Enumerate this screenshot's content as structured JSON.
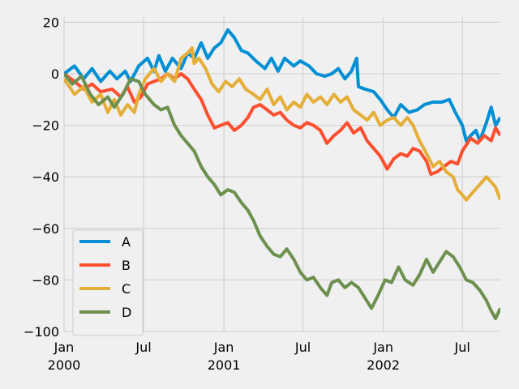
{
  "chart_data": {
    "type": "line",
    "x_axis": {
      "type": "date",
      "range": [
        "2000-01-01",
        "2002-09-26"
      ],
      "ticks": [
        {
          "date": "2000-01-01",
          "label": "Jan",
          "sublabel": "2000"
        },
        {
          "date": "2000-07-01",
          "label": "Jul",
          "sublabel": ""
        },
        {
          "date": "2001-01-01",
          "label": "Jan",
          "sublabel": "2001"
        },
        {
          "date": "2001-07-01",
          "label": "Jul",
          "sublabel": ""
        },
        {
          "date": "2002-01-01",
          "label": "Jan",
          "sublabel": "2002"
        },
        {
          "date": "2002-07-01",
          "label": "Jul",
          "sublabel": ""
        }
      ],
      "label": ""
    },
    "y_axis": {
      "range": [
        -100,
        22
      ],
      "ticks": [
        20,
        0,
        -20,
        -40,
        -60,
        -80,
        -100
      ],
      "tick_labels": [
        "20",
        "0",
        "−20",
        "−40",
        "−60",
        "−80",
        "−100"
      ],
      "label": ""
    },
    "grid": true,
    "legend_position": "lower-left",
    "title": "",
    "series": [
      {
        "name": "A",
        "color": "#008fd5",
        "points": [
          [
            "2000-01-01",
            0
          ],
          [
            "2000-01-25",
            3
          ],
          [
            "2000-02-15",
            -2
          ],
          [
            "2000-03-05",
            2
          ],
          [
            "2000-03-25",
            -3
          ],
          [
            "2000-04-15",
            1
          ],
          [
            "2000-05-01",
            -2
          ],
          [
            "2000-05-20",
            1
          ],
          [
            "2000-06-01",
            -3
          ],
          [
            "2000-06-20",
            3
          ],
          [
            "2000-07-10",
            6
          ],
          [
            "2000-07-25",
            1
          ],
          [
            "2000-08-05",
            7
          ],
          [
            "2000-08-20",
            1
          ],
          [
            "2000-09-05",
            6
          ],
          [
            "2000-09-25",
            2
          ],
          [
            "2000-10-10",
            8
          ],
          [
            "2000-10-25",
            6
          ],
          [
            "2000-11-10",
            12
          ],
          [
            "2000-11-25",
            6
          ],
          [
            "2000-12-10",
            10
          ],
          [
            "2000-12-25",
            12
          ],
          [
            "2001-01-10",
            17
          ],
          [
            "2001-01-25",
            14
          ],
          [
            "2001-02-10",
            9
          ],
          [
            "2001-02-25",
            8
          ],
          [
            "2001-03-15",
            5
          ],
          [
            "2001-04-05",
            2
          ],
          [
            "2001-04-20",
            6
          ],
          [
            "2001-05-05",
            1
          ],
          [
            "2001-05-20",
            6
          ],
          [
            "2001-06-10",
            3
          ],
          [
            "2001-06-25",
            5
          ],
          [
            "2001-07-15",
            3
          ],
          [
            "2001-08-01",
            0
          ],
          [
            "2001-08-20",
            -1
          ],
          [
            "2001-09-05",
            0
          ],
          [
            "2001-09-20",
            2
          ],
          [
            "2001-10-05",
            -2
          ],
          [
            "2001-10-20",
            1
          ],
          [
            "2001-11-01",
            6
          ],
          [
            "2001-11-05",
            -5
          ],
          [
            "2001-11-20",
            -6
          ],
          [
            "2001-12-10",
            -7
          ],
          [
            "2001-12-25",
            -10
          ],
          [
            "2002-01-10",
            -14
          ],
          [
            "2002-01-25",
            -17
          ],
          [
            "2002-02-10",
            -12
          ],
          [
            "2002-03-01",
            -15
          ],
          [
            "2002-03-20",
            -14
          ],
          [
            "2002-04-05",
            -12
          ],
          [
            "2002-04-25",
            -11
          ],
          [
            "2002-05-15",
            -11
          ],
          [
            "2002-06-01",
            -10
          ],
          [
            "2002-06-15",
            -15
          ],
          [
            "2002-07-01",
            -20
          ],
          [
            "2002-07-10",
            -26
          ],
          [
            "2002-07-20",
            -24
          ],
          [
            "2002-08-01",
            -22
          ],
          [
            "2002-08-10",
            -26
          ],
          [
            "2002-08-25",
            -19
          ],
          [
            "2002-09-05",
            -13
          ],
          [
            "2002-09-15",
            -20
          ],
          [
            "2002-09-26",
            -17
          ]
        ]
      },
      {
        "name": "B",
        "color": "#fc4f30",
        "points": [
          [
            "2000-01-01",
            0
          ],
          [
            "2000-01-25",
            -3
          ],
          [
            "2000-02-15",
            -6
          ],
          [
            "2000-03-05",
            -4
          ],
          [
            "2000-03-25",
            -7
          ],
          [
            "2000-04-20",
            -6
          ],
          [
            "2000-05-10",
            -9
          ],
          [
            "2000-05-25",
            -5
          ],
          [
            "2000-06-10",
            -11
          ],
          [
            "2000-06-25",
            -9
          ],
          [
            "2000-07-10",
            -4
          ],
          [
            "2000-07-25",
            -3
          ],
          [
            "2000-08-10",
            -2
          ],
          [
            "2000-08-25",
            0
          ],
          [
            "2000-09-10",
            -2
          ],
          [
            "2000-09-25",
            0
          ],
          [
            "2000-10-10",
            -2
          ],
          [
            "2000-10-25",
            -6
          ],
          [
            "2000-11-10",
            -10
          ],
          [
            "2000-11-25",
            -16
          ],
          [
            "2000-12-10",
            -21
          ],
          [
            "2000-12-25",
            -20
          ],
          [
            "2001-01-10",
            -19
          ],
          [
            "2001-01-25",
            -22
          ],
          [
            "2001-02-10",
            -20
          ],
          [
            "2001-02-25",
            -17
          ],
          [
            "2001-03-10",
            -13
          ],
          [
            "2001-03-25",
            -12
          ],
          [
            "2001-04-10",
            -14
          ],
          [
            "2001-04-25",
            -16
          ],
          [
            "2001-05-10",
            -15
          ],
          [
            "2001-05-25",
            -18
          ],
          [
            "2001-06-10",
            -20
          ],
          [
            "2001-06-25",
            -21
          ],
          [
            "2001-07-10",
            -19
          ],
          [
            "2001-07-25",
            -20
          ],
          [
            "2001-08-10",
            -22
          ],
          [
            "2001-08-25",
            -27
          ],
          [
            "2001-09-10",
            -24
          ],
          [
            "2001-09-25",
            -22
          ],
          [
            "2001-10-10",
            -19
          ],
          [
            "2001-10-25",
            -23
          ],
          [
            "2001-11-10",
            -21
          ],
          [
            "2001-11-25",
            -26
          ],
          [
            "2001-12-10",
            -29
          ],
          [
            "2001-12-25",
            -32
          ],
          [
            "2002-01-10",
            -37
          ],
          [
            "2002-01-25",
            -33
          ],
          [
            "2002-02-10",
            -31
          ],
          [
            "2002-02-25",
            -32
          ],
          [
            "2002-03-10",
            -29
          ],
          [
            "2002-03-25",
            -30
          ],
          [
            "2002-04-10",
            -34
          ],
          [
            "2002-04-20",
            -39
          ],
          [
            "2002-05-05",
            -38
          ],
          [
            "2002-05-20",
            -36
          ],
          [
            "2002-06-05",
            -34
          ],
          [
            "2002-06-20",
            -35
          ],
          [
            "2002-07-01",
            -30
          ],
          [
            "2002-07-20",
            -25
          ],
          [
            "2002-08-05",
            -27
          ],
          [
            "2002-08-20",
            -24
          ],
          [
            "2002-09-05",
            -26
          ],
          [
            "2002-09-15",
            -21
          ],
          [
            "2002-09-26",
            -24
          ]
        ]
      },
      {
        "name": "C",
        "color": "#e5ae38",
        "points": [
          [
            "2000-01-01",
            -2
          ],
          [
            "2000-01-25",
            -8
          ],
          [
            "2000-02-15",
            -5
          ],
          [
            "2000-03-05",
            -11
          ],
          [
            "2000-03-25",
            -8
          ],
          [
            "2000-04-10",
            -15
          ],
          [
            "2000-04-25",
            -10
          ],
          [
            "2000-05-10",
            -16
          ],
          [
            "2000-05-25",
            -12
          ],
          [
            "2000-06-10",
            -15
          ],
          [
            "2000-06-20",
            -8
          ],
          [
            "2000-07-05",
            -2
          ],
          [
            "2000-07-25",
            2
          ],
          [
            "2000-08-10",
            -3
          ],
          [
            "2000-08-25",
            0
          ],
          [
            "2000-09-10",
            -3
          ],
          [
            "2000-09-25",
            6
          ],
          [
            "2000-10-10",
            8
          ],
          [
            "2000-10-20",
            10
          ],
          [
            "2000-10-25",
            4
          ],
          [
            "2000-11-05",
            6
          ],
          [
            "2000-11-20",
            2
          ],
          [
            "2000-12-05",
            -4
          ],
          [
            "2000-12-20",
            -7
          ],
          [
            "2001-01-05",
            -3
          ],
          [
            "2001-01-20",
            -5
          ],
          [
            "2001-02-05",
            -2
          ],
          [
            "2001-02-20",
            -6
          ],
          [
            "2001-03-10",
            -8
          ],
          [
            "2001-03-25",
            -10
          ],
          [
            "2001-04-10",
            -6
          ],
          [
            "2001-04-25",
            -12
          ],
          [
            "2001-05-10",
            -9
          ],
          [
            "2001-05-25",
            -14
          ],
          [
            "2001-06-10",
            -11
          ],
          [
            "2001-06-25",
            -13
          ],
          [
            "2001-07-10",
            -8
          ],
          [
            "2001-07-25",
            -11
          ],
          [
            "2001-08-10",
            -9
          ],
          [
            "2001-08-25",
            -12
          ],
          [
            "2001-09-10",
            -8
          ],
          [
            "2001-09-25",
            -11
          ],
          [
            "2001-10-10",
            -9
          ],
          [
            "2001-10-25",
            -14
          ],
          [
            "2001-11-10",
            -16
          ],
          [
            "2001-11-25",
            -18
          ],
          [
            "2001-12-10",
            -15
          ],
          [
            "2001-12-25",
            -20
          ],
          [
            "2002-01-10",
            -18
          ],
          [
            "2002-01-25",
            -17
          ],
          [
            "2002-02-10",
            -20
          ],
          [
            "2002-02-25",
            -17
          ],
          [
            "2002-03-10",
            -20
          ],
          [
            "2002-03-25",
            -26
          ],
          [
            "2002-04-10",
            -31
          ],
          [
            "2002-04-25",
            -36
          ],
          [
            "2002-05-10",
            -34
          ],
          [
            "2002-05-25",
            -38
          ],
          [
            "2002-06-10",
            -40
          ],
          [
            "2002-06-20",
            -45
          ],
          [
            "2002-07-01",
            -47
          ],
          [
            "2002-07-10",
            -49
          ],
          [
            "2002-07-25",
            -46
          ],
          [
            "2002-08-10",
            -43
          ],
          [
            "2002-08-25",
            -40
          ],
          [
            "2002-09-05",
            -42
          ],
          [
            "2002-09-15",
            -44
          ],
          [
            "2002-09-26",
            -49
          ]
        ]
      },
      {
        "name": "D",
        "color": "#6d904f",
        "points": [
          [
            "2000-01-01",
            0
          ],
          [
            "2000-01-20",
            -4
          ],
          [
            "2000-02-10",
            -1
          ],
          [
            "2000-03-01",
            -8
          ],
          [
            "2000-03-20",
            -12
          ],
          [
            "2000-04-10",
            -9
          ],
          [
            "2000-04-25",
            -13
          ],
          [
            "2000-05-15",
            -8
          ],
          [
            "2000-06-01",
            -2
          ],
          [
            "2000-06-20",
            -3
          ],
          [
            "2000-07-05",
            -8
          ],
          [
            "2000-07-25",
            -12
          ],
          [
            "2000-08-10",
            -14
          ],
          [
            "2000-08-25",
            -13
          ],
          [
            "2000-09-10",
            -20
          ],
          [
            "2000-09-25",
            -24
          ],
          [
            "2000-10-10",
            -27
          ],
          [
            "2000-10-25",
            -30
          ],
          [
            "2000-11-10",
            -36
          ],
          [
            "2000-11-25",
            -40
          ],
          [
            "2000-12-10",
            -43
          ],
          [
            "2000-12-25",
            -47
          ],
          [
            "2001-01-10",
            -45
          ],
          [
            "2001-01-25",
            -46
          ],
          [
            "2001-02-10",
            -50
          ],
          [
            "2001-02-25",
            -53
          ],
          [
            "2001-03-10",
            -57
          ],
          [
            "2001-03-25",
            -63
          ],
          [
            "2001-04-10",
            -67
          ],
          [
            "2001-04-25",
            -70
          ],
          [
            "2001-05-10",
            -71
          ],
          [
            "2001-05-25",
            -68
          ],
          [
            "2001-06-10",
            -72
          ],
          [
            "2001-06-25",
            -77
          ],
          [
            "2001-07-10",
            -80
          ],
          [
            "2001-07-25",
            -79
          ],
          [
            "2001-08-10",
            -83
          ],
          [
            "2001-08-25",
            -86
          ],
          [
            "2001-09-05",
            -81
          ],
          [
            "2001-09-20",
            -80
          ],
          [
            "2001-10-05",
            -83
          ],
          [
            "2001-10-20",
            -81
          ],
          [
            "2001-11-05",
            -83
          ],
          [
            "2001-11-20",
            -87
          ],
          [
            "2001-12-05",
            -91
          ],
          [
            "2001-12-20",
            -86
          ],
          [
            "2002-01-05",
            -80
          ],
          [
            "2002-01-20",
            -81
          ],
          [
            "2002-02-05",
            -75
          ],
          [
            "2002-02-20",
            -80
          ],
          [
            "2002-03-10",
            -82
          ],
          [
            "2002-03-25",
            -78
          ],
          [
            "2002-04-10",
            -72
          ],
          [
            "2002-04-25",
            -77
          ],
          [
            "2002-05-10",
            -73
          ],
          [
            "2002-05-25",
            -69
          ],
          [
            "2002-06-10",
            -71
          ],
          [
            "2002-06-25",
            -75
          ],
          [
            "2002-07-10",
            -80
          ],
          [
            "2002-07-25",
            -81
          ],
          [
            "2002-08-10",
            -84
          ],
          [
            "2002-08-25",
            -88
          ],
          [
            "2002-09-05",
            -92
          ],
          [
            "2002-09-15",
            -95
          ],
          [
            "2002-09-26",
            -91
          ]
        ]
      }
    ]
  }
}
